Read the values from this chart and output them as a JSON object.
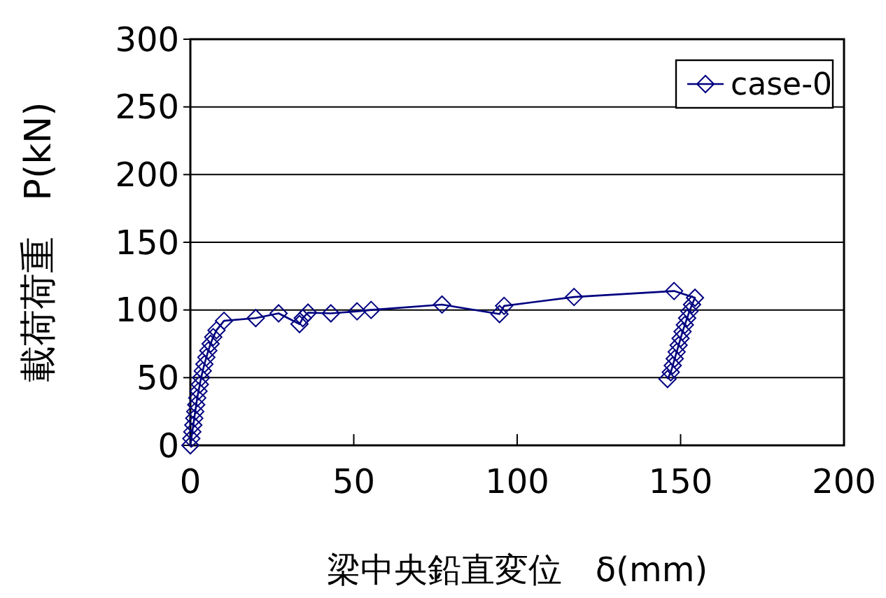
{
  "chart_data": {
    "type": "line",
    "xlabel": "梁中央鉛直変位　δ(mm)",
    "ylabel": "載荷荷重　P(kN)",
    "xlim": [
      0,
      200
    ],
    "xticks": [
      0,
      50,
      100,
      150,
      200
    ],
    "ylim": [
      0,
      300
    ],
    "yticks": [
      0,
      50,
      100,
      150,
      200,
      250,
      300
    ],
    "grid": "y",
    "legend": "top right",
    "marker": "diamond",
    "line_style": "solid",
    "series": [
      {
        "name": "case-0",
        "color": "#000080",
        "x": [
          0,
          0.3,
          0.6,
          0.9,
          1.2,
          1.5,
          1.8,
          2.1,
          2.5,
          2.9,
          3.3,
          3.8,
          4.3,
          4.9,
          5.5,
          6.2,
          7,
          8,
          10.3,
          20,
          27,
          33.4,
          34.4,
          36,
          43,
          51,
          55.3,
          77,
          94.6,
          96,
          117.4,
          148,
          154.4,
          153.5,
          152.7,
          152,
          151.3,
          150.6,
          150,
          149.4,
          148.8,
          148.2,
          147.6,
          147,
          146
        ],
        "values": [
          0,
          5,
          10,
          15,
          20,
          25,
          30,
          35,
          40,
          45,
          50,
          55,
          60,
          65,
          70,
          75,
          80,
          85,
          92,
          94,
          97.5,
          89.6,
          94,
          98,
          97.5,
          99,
          100,
          104,
          97,
          103,
          109.6,
          114,
          109,
          104,
          99,
          94,
          89,
          84,
          79,
          74,
          69,
          64,
          59,
          54,
          49
        ]
      }
    ]
  }
}
